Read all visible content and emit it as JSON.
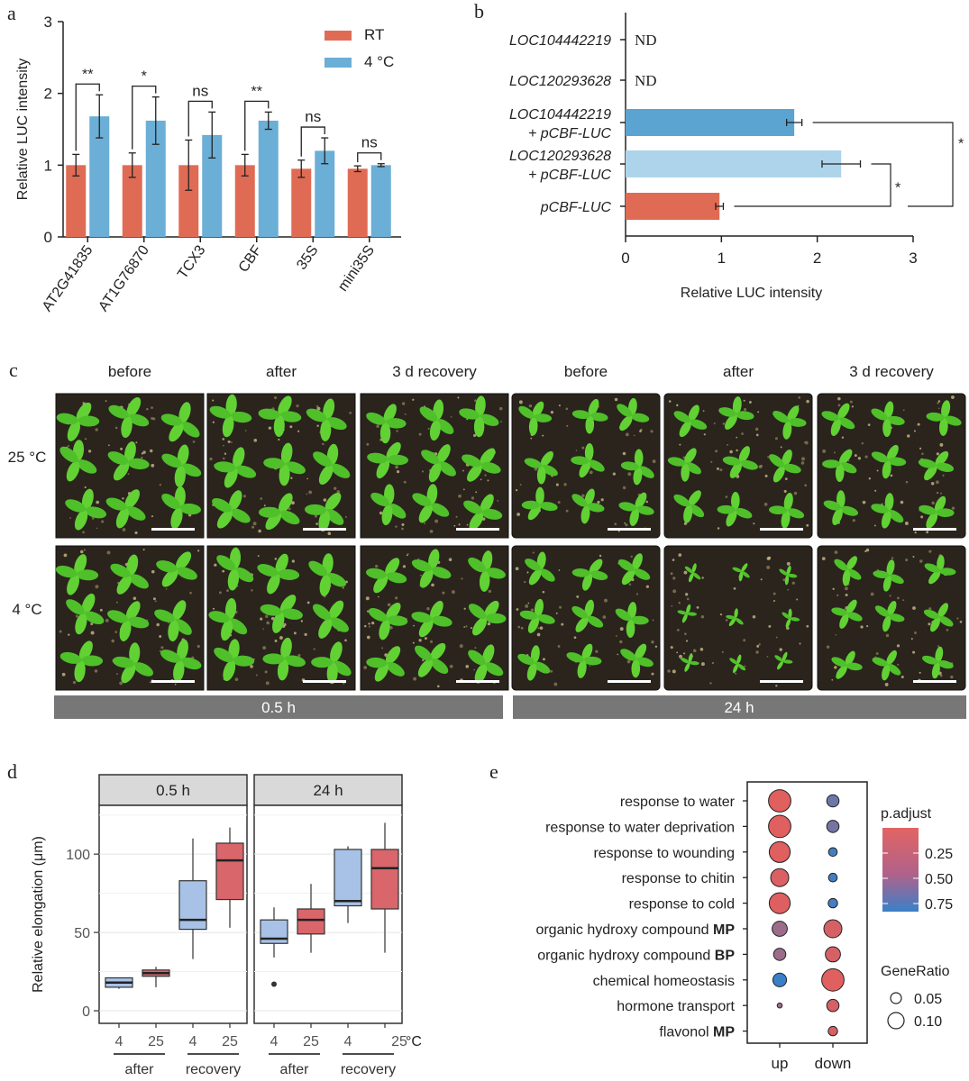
{
  "panels": {
    "a": "a",
    "b": "b",
    "c": "c",
    "d": "d",
    "e": "e"
  },
  "colors": {
    "rt": "#e06b55",
    "cold": "#6baed6",
    "loc1": "#5ba3d0",
    "loc2": "#aed4eb",
    "box_blue": "#a7c2e6",
    "box_red": "#d9666b",
    "strip": "#d9d9d9",
    "bar_grey": "#777777"
  },
  "chart_data": [
    {
      "id": "a",
      "type": "bar",
      "title": "",
      "ylabel": "Relative LUC intensity",
      "xlabel": "",
      "ylim": [
        0,
        3
      ],
      "yticks": [
        0,
        1,
        2,
        3
      ],
      "categories": [
        "AT2G41835",
        "AT1G76870",
        "TCX3",
        "CBF",
        "35S",
        "mini35S"
      ],
      "series": [
        {
          "name": "RT",
          "values": [
            1.0,
            1.0,
            1.0,
            1.0,
            0.95,
            0.95
          ],
          "errors": [
            0.15,
            0.17,
            0.35,
            0.15,
            0.12,
            0.04
          ]
        },
        {
          "name": "4 °C",
          "values": [
            1.68,
            1.62,
            1.42,
            1.62,
            1.2,
            1.0
          ],
          "errors": [
            0.3,
            0.33,
            0.32,
            0.12,
            0.18,
            0.02
          ]
        }
      ],
      "significance": [
        "**",
        "*",
        "ns",
        "**",
        "ns",
        "ns"
      ],
      "legend": "top-right"
    },
    {
      "id": "b",
      "type": "bar",
      "orientation": "horizontal",
      "title": "",
      "xlabel": "Relative LUC intensity",
      "ylabel": "",
      "xlim": [
        0,
        3
      ],
      "xticks": [
        0,
        1,
        2,
        3
      ],
      "categories": [
        {
          "line1": "LOC104442219",
          "line2": ""
        },
        {
          "line1": "LOC120293628",
          "line2": ""
        },
        {
          "line1": "LOC104442219",
          "line2": "+ pCBF-LUC"
        },
        {
          "line1": "LOC120293628",
          "line2": "+ pCBF-LUC"
        },
        {
          "line1": "pCBF-LUC",
          "line2": ""
        }
      ],
      "values": [
        null,
        null,
        1.76,
        2.25,
        0.98
      ],
      "errors": [
        null,
        null,
        0.08,
        0.2,
        0.04
      ],
      "nd_label": "ND",
      "significance": [
        "*",
        "*"
      ]
    },
    {
      "id": "d",
      "type": "box",
      "ylabel": "Relative elongation (μm)",
      "ylim": [
        0,
        130
      ],
      "yticks": [
        0,
        50,
        100
      ],
      "facets": [
        "0.5 h",
        "24 h"
      ],
      "groups": [
        {
          "facet": 0,
          "temp": "4",
          "stage": "after",
          "color": "blue",
          "min": 14,
          "q1": 15,
          "median": 18,
          "q3": 21,
          "max": 21,
          "outliers": []
        },
        {
          "facet": 0,
          "temp": "25",
          "stage": "after",
          "color": "red",
          "min": 15,
          "q1": 22,
          "median": 24,
          "q3": 26,
          "max": 28,
          "outliers": []
        },
        {
          "facet": 0,
          "temp": "4",
          "stage": "recovery",
          "color": "blue",
          "min": 33,
          "q1": 52,
          "median": 58,
          "q3": 83,
          "max": 110,
          "outliers": []
        },
        {
          "facet": 0,
          "temp": "25",
          "stage": "recovery",
          "color": "red",
          "min": 53,
          "q1": 71,
          "median": 96,
          "q3": 107,
          "max": 117,
          "outliers": []
        },
        {
          "facet": 1,
          "temp": "4",
          "stage": "after",
          "color": "blue",
          "min": 34,
          "q1": 43,
          "median": 46,
          "q3": 58,
          "max": 66,
          "outliers": [
            17
          ]
        },
        {
          "facet": 1,
          "temp": "25",
          "stage": "after",
          "color": "red",
          "min": 37,
          "q1": 49,
          "median": 58,
          "q3": 65,
          "max": 81,
          "outliers": []
        },
        {
          "facet": 1,
          "temp": "4",
          "stage": "recovery",
          "color": "blue",
          "min": 56,
          "q1": 67,
          "median": 70,
          "q3": 103,
          "max": 105,
          "outliers": []
        },
        {
          "facet": 1,
          "temp": "25",
          "stage": "recovery",
          "color": "red",
          "min": 37,
          "q1": 65,
          "median": 91,
          "q3": 103,
          "max": 120,
          "outliers": []
        }
      ],
      "x_unit": "°C",
      "stage_labels": [
        "after",
        "recovery"
      ]
    },
    {
      "id": "e",
      "type": "scatter",
      "subtype": "dotplot",
      "columns": [
        "up",
        "down"
      ],
      "terms": [
        {
          "pre": "response to water",
          "bold": ""
        },
        {
          "pre": "response to water deprivation",
          "bold": ""
        },
        {
          "pre": "response to wounding",
          "bold": ""
        },
        {
          "pre": "response to chitin",
          "bold": ""
        },
        {
          "pre": "response to cold",
          "bold": ""
        },
        {
          "pre": "organic hydroxy compound ",
          "bold": "MP"
        },
        {
          "pre": "organic hydroxy compound ",
          "bold": "BP"
        },
        {
          "pre": "chemical homeostasis",
          "bold": ""
        },
        {
          "pre": "hormone transport",
          "bold": ""
        },
        {
          "pre": "flavonol ",
          "bold": "MP"
        }
      ],
      "points": [
        {
          "term": 0,
          "col": 0,
          "gene_ratio": 0.13,
          "p_adjust": 0.05
        },
        {
          "term": 0,
          "col": 1,
          "gene_ratio": 0.06,
          "p_adjust": 0.65
        },
        {
          "term": 1,
          "col": 0,
          "gene_ratio": 0.13,
          "p_adjust": 0.05
        },
        {
          "term": 1,
          "col": 1,
          "gene_ratio": 0.06,
          "p_adjust": 0.6
        },
        {
          "term": 2,
          "col": 0,
          "gene_ratio": 0.12,
          "p_adjust": 0.05
        },
        {
          "term": 2,
          "col": 1,
          "gene_ratio": 0.035,
          "p_adjust": 0.85
        },
        {
          "term": 3,
          "col": 0,
          "gene_ratio": 0.1,
          "p_adjust": 0.08
        },
        {
          "term": 3,
          "col": 1,
          "gene_ratio": 0.035,
          "p_adjust": 0.85
        },
        {
          "term": 4,
          "col": 0,
          "gene_ratio": 0.12,
          "p_adjust": 0.06
        },
        {
          "term": 4,
          "col": 1,
          "gene_ratio": 0.04,
          "p_adjust": 0.85
        },
        {
          "term": 5,
          "col": 0,
          "gene_ratio": 0.08,
          "p_adjust": 0.4
        },
        {
          "term": 5,
          "col": 1,
          "gene_ratio": 0.1,
          "p_adjust": 0.1
        },
        {
          "term": 6,
          "col": 0,
          "gene_ratio": 0.06,
          "p_adjust": 0.4
        },
        {
          "term": 6,
          "col": 1,
          "gene_ratio": 0.08,
          "p_adjust": 0.1
        },
        {
          "term": 7,
          "col": 0,
          "gene_ratio": 0.07,
          "p_adjust": 0.9
        },
        {
          "term": 7,
          "col": 1,
          "gene_ratio": 0.13,
          "p_adjust": 0.05
        },
        {
          "term": 8,
          "col": 0,
          "gene_ratio": 0.01,
          "p_adjust": 0.4
        },
        {
          "term": 8,
          "col": 1,
          "gene_ratio": 0.06,
          "p_adjust": 0.1
        },
        {
          "term": 9,
          "col": 1,
          "gene_ratio": 0.04,
          "p_adjust": 0.1
        }
      ],
      "legend_color_title": "p.adjust",
      "color_ticks": [
        "0.25",
        "0.50",
        "0.75"
      ],
      "legend_size_title": "GeneRatio",
      "size_ticks": [
        "0.05",
        "0.10"
      ]
    }
  ],
  "panel_c": {
    "columns": [
      "before",
      "after",
      "3 d recovery",
      "before",
      "after",
      "3 d recovery"
    ],
    "rows": [
      "25 °C",
      "4 °C"
    ],
    "time_bars": [
      "0.5 h",
      "24 h"
    ],
    "plant_density": [
      [
        1,
        1,
        0.95,
        0.8,
        0.8,
        0.8
      ],
      [
        1,
        1,
        0.95,
        0.8,
        0.35,
        0.7
      ]
    ]
  }
}
